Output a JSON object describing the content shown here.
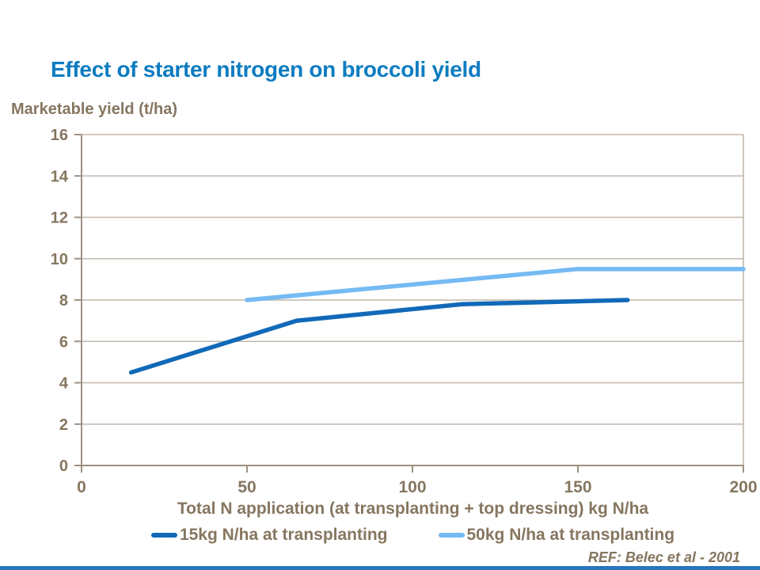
{
  "page": {
    "title": "Effect of starter nitrogen on broccoli yield",
    "ref_note": "REF: Belec et al - 2001"
  },
  "colors": {
    "title_blue": "#0d7cc1",
    "text_brown": "#867660",
    "axis": "#9d9184",
    "grid": "#c1b7ac",
    "bottom_bar": "#2776be",
    "series_dark_blue": "#1169b8",
    "series_light_blue": "#75baf3"
  },
  "chart_data": {
    "type": "line",
    "title": "Effect of starter nitrogen on broccoli yield",
    "ylabel": "Marketable yield (t/ha)",
    "xlabel": "Total N application (at transplanting + top dressing) kg N/ha",
    "xlim": [
      0,
      200
    ],
    "ylim": [
      0,
      16
    ],
    "x_ticks": [
      0,
      50,
      100,
      150,
      200
    ],
    "y_ticks": [
      0,
      2,
      4,
      6,
      8,
      10,
      12,
      14,
      16
    ],
    "grid": "horizontal gridlines at every y tick, plot box border on top and right",
    "legend_position": "bottom",
    "annotation": "REF: Belec et al - 2001",
    "series": [
      {
        "name": "15kg N/ha at transplanting",
        "color": "#1169b8",
        "points": [
          [
            15,
            4.5
          ],
          [
            65,
            7.0
          ],
          [
            115,
            7.8
          ],
          [
            165,
            8.0
          ]
        ]
      },
      {
        "name": "50kg N/ha at transplanting",
        "color": "#75baf3",
        "points": [
          [
            50,
            8.0
          ],
          [
            150,
            9.5
          ],
          [
            200,
            9.5
          ]
        ]
      }
    ]
  }
}
